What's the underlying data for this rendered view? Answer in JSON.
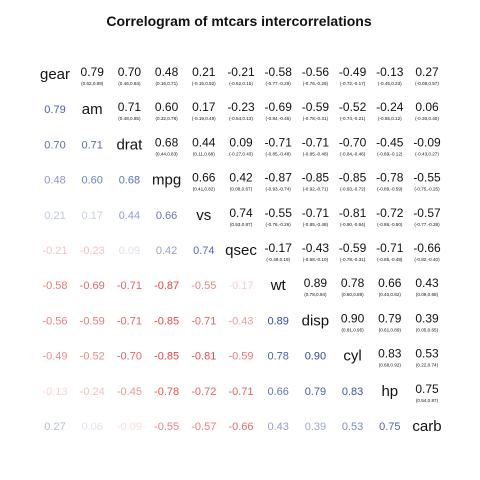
{
  "chart_data": {
    "type": "table",
    "title": "Correlogram of mtcars intercorrelations",
    "variables": [
      "gear",
      "am",
      "drat",
      "mpg",
      "vs",
      "qsec",
      "wt",
      "disp",
      "cyl",
      "hp",
      "carb"
    ],
    "lower_panel": {
      "description": "correlations as colored numbers",
      "rows": [
        [
          0.79
        ],
        [
          0.7,
          0.71
        ],
        [
          0.48,
          0.6,
          0.68
        ],
        [
          0.21,
          0.17,
          0.44,
          0.66
        ],
        [
          -0.21,
          -0.23,
          0.09,
          0.42,
          0.74
        ],
        [
          -0.58,
          -0.69,
          -0.71,
          -0.87,
          -0.55,
          -0.17
        ],
        [
          -0.56,
          -0.59,
          -0.71,
          -0.85,
          -0.71,
          -0.43,
          0.89
        ],
        [
          -0.49,
          -0.52,
          -0.7,
          -0.85,
          -0.81,
          -0.59,
          0.78,
          0.9
        ],
        [
          -0.13,
          -0.24,
          -0.45,
          -0.78,
          -0.72,
          -0.71,
          0.66,
          0.79,
          0.83
        ],
        [
          0.27,
          0.06,
          -0.09,
          -0.55,
          -0.57,
          -0.66,
          0.43,
          0.39,
          0.53,
          0.75
        ]
      ]
    },
    "upper_panel": {
      "description": "correlation with confidence interval",
      "rows": [
        [
          {
            "r": "0.79",
            "ci": "(0.62,0.89)"
          },
          {
            "r": "0.70",
            "ci": "(0.46,0.84)"
          },
          {
            "r": "0.48",
            "ci": "(0.16,0.71)"
          },
          {
            "r": "0.21",
            "ci": "(-0.15,0.52)"
          },
          {
            "r": "-0.21",
            "ci": "(-0.52,0.15)"
          },
          {
            "r": "-0.58",
            "ci": "(-0.77,-0.29)"
          },
          {
            "r": "-0.56",
            "ci": "(-0.76,-0.26)"
          },
          {
            "r": "-0.49",
            "ci": "(-0.72,-0.17)"
          },
          {
            "r": "-0.13",
            "ci": "(-0.45,0.23)"
          },
          {
            "r": "0.27",
            "ci": "(-0.08,0.57)"
          }
        ],
        [
          {
            "r": "0.71",
            "ci": "(0.48,0.85)"
          },
          {
            "r": "0.60",
            "ci": "(0.32,0.78)"
          },
          {
            "r": "0.17",
            "ci": "(-0.19,0.49)"
          },
          {
            "r": "-0.23",
            "ci": "(-0.54,0.13)"
          },
          {
            "r": "-0.69",
            "ci": "(-0.84,-0.45)"
          },
          {
            "r": "-0.59",
            "ci": "(-0.78,-0.31)"
          },
          {
            "r": "-0.52",
            "ci": "(-0.74,-0.21)"
          },
          {
            "r": "-0.24",
            "ci": "(-0.55,0.12)"
          },
          {
            "r": "0.06",
            "ci": "(-0.30,0.40)"
          }
        ],
        [
          {
            "r": "0.68",
            "ci": "(0.44,0.83)"
          },
          {
            "r": "0.44",
            "ci": "(0.11,0.68)"
          },
          {
            "r": "0.09",
            "ci": "(-0.27,0.43)"
          },
          {
            "r": "-0.71",
            "ci": "(-0.85,-0.48)"
          },
          {
            "r": "-0.71",
            "ci": "(-0.85,-0.48)"
          },
          {
            "r": "-0.70",
            "ci": "(-0.84,-0.46)"
          },
          {
            "r": "-0.45",
            "ci": "(-0.69,-0.12)"
          },
          {
            "r": "-0.09",
            "ci": "(-0.43,0.27)"
          }
        ],
        [
          {
            "r": "0.66",
            "ci": "(0.41,0.82)"
          },
          {
            "r": "0.42",
            "ci": "(0.08,0.67)"
          },
          {
            "r": "-0.87",
            "ci": "(-0.93,-0.74)"
          },
          {
            "r": "-0.85",
            "ci": "(-0.92,-0.71)"
          },
          {
            "r": "-0.85",
            "ci": "(-0.93,-0.72)"
          },
          {
            "r": "-0.78",
            "ci": "(-0.89,-0.59)"
          },
          {
            "r": "-0.55",
            "ci": "(-0.75,-0.25)"
          }
        ],
        [
          {
            "r": "0.74",
            "ci": "(0.53,0.87)"
          },
          {
            "r": "-0.55",
            "ci": "(-0.76,-0.26)"
          },
          {
            "r": "-0.71",
            "ci": "(-0.85,-0.48)"
          },
          {
            "r": "-0.81",
            "ci": "(-0.90,-0.64)"
          },
          {
            "r": "-0.72",
            "ci": "(-0.86,-0.50)"
          },
          {
            "r": "-0.57",
            "ci": "(-0.77,-0.28)"
          }
        ],
        [
          {
            "r": "-0.17",
            "ci": "(-0.49,0.19)"
          },
          {
            "r": "-0.43",
            "ci": "(-0.68,-0.10)"
          },
          {
            "r": "-0.59",
            "ci": "(-0.78,-0.31)"
          },
          {
            "r": "-0.71",
            "ci": "(-0.85,-0.48)"
          },
          {
            "r": "-0.66",
            "ci": "(-0.82,-0.40)"
          }
        ],
        [
          {
            "r": "0.89",
            "ci": "(0.78,0.94)"
          },
          {
            "r": "0.78",
            "ci": "(0.60,0.89)"
          },
          {
            "r": "0.66",
            "ci": "(0.40,0.82)"
          },
          {
            "r": "0.43",
            "ci": "(0.09,0.68)"
          }
        ],
        [
          {
            "r": "0.90",
            "ci": "(0.81,0.95)"
          },
          {
            "r": "0.79",
            "ci": "(0.61,0.89)"
          },
          {
            "r": "0.39",
            "ci": "(0.05,0.65)"
          }
        ],
        [
          {
            "r": "0.83",
            "ci": "(0.68,0.92)"
          },
          {
            "r": "0.53",
            "ci": "(0.22,0.74)"
          }
        ],
        [
          {
            "r": "0.75",
            "ci": "(0.54,0.87)"
          }
        ]
      ]
    },
    "colors": {
      "positive": "#1f3d99",
      "negative": "#e03030",
      "label": "#111111",
      "upper_text": "#111111"
    }
  }
}
